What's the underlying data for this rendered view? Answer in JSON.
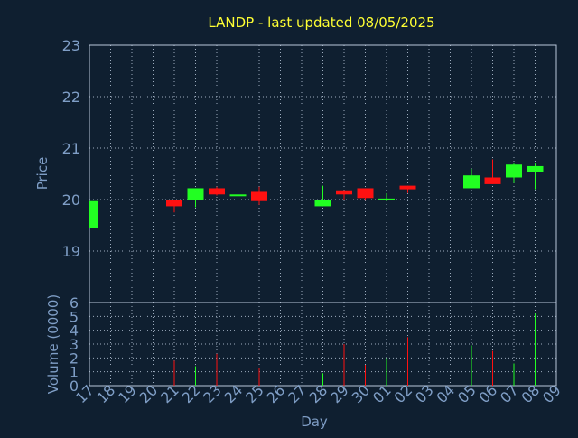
{
  "chart_data": {
    "type": "candlestick",
    "title": "LANDP - last updated 08/05/2025",
    "xlabel": "Day",
    "x_ticks": [
      "17",
      "18",
      "19",
      "20",
      "21",
      "22",
      "23",
      "24",
      "25",
      "26",
      "27",
      "28",
      "29",
      "30",
      "01",
      "02",
      "03",
      "04",
      "05",
      "06",
      "07",
      "08",
      "09"
    ],
    "grid": true,
    "colors": {
      "background": "#0f1f30",
      "up": "#22ff22",
      "down": "#ff1111",
      "title": "#ffff33",
      "axis_text": "#7f9ec6",
      "grid": "#b9c7da"
    },
    "price_panel": {
      "ylabel": "Price",
      "ylim": [
        18.0,
        23.0
      ],
      "y_ticks": [
        "23",
        "22",
        "21",
        "20",
        "19"
      ],
      "candles": [
        {
          "x": 17,
          "open": 19.45,
          "high": 19.97,
          "low": 19.45,
          "close": 19.97
        },
        {
          "x": 21,
          "open": 20.0,
          "high": 20.0,
          "low": 19.75,
          "close": 19.87
        },
        {
          "x": 22,
          "open": 20.0,
          "high": 20.22,
          "low": 19.85,
          "close": 20.22
        },
        {
          "x": 23,
          "open": 20.22,
          "high": 20.25,
          "low": 20.08,
          "close": 20.1
        },
        {
          "x": 24,
          "open": 20.08,
          "high": 20.23,
          "low": 20.05,
          "close": 20.1
        },
        {
          "x": 25,
          "open": 20.15,
          "high": 20.25,
          "low": 19.9,
          "close": 19.97
        },
        {
          "x": 28,
          "open": 19.87,
          "high": 20.27,
          "low": 19.87,
          "close": 20.0
        },
        {
          "x": 29,
          "open": 20.18,
          "high": 20.18,
          "low": 20.0,
          "close": 20.1
        },
        {
          "x": 30,
          "open": 20.22,
          "high": 20.22,
          "low": 19.98,
          "close": 20.03
        },
        {
          "x": 31,
          "open": 20.0,
          "high": 20.12,
          "low": 19.97,
          "close": 20.02
        },
        {
          "x": 32,
          "open": 20.27,
          "high": 20.27,
          "low": 20.13,
          "close": 20.2
        },
        {
          "x": 35,
          "open": 20.22,
          "high": 20.6,
          "low": 20.22,
          "close": 20.47
        },
        {
          "x": 36,
          "open": 20.43,
          "high": 20.78,
          "low": 20.3,
          "close": 20.3
        },
        {
          "x": 37,
          "open": 20.43,
          "high": 20.7,
          "low": 20.32,
          "close": 20.68
        },
        {
          "x": 38,
          "open": 20.53,
          "high": 20.7,
          "low": 20.2,
          "close": 20.65
        }
      ]
    },
    "volume_panel": {
      "ylabel": "Volume (0000)",
      "ylim": [
        0,
        6
      ],
      "y_ticks": [
        "6",
        "5",
        "4",
        "3",
        "2",
        "1",
        "0"
      ],
      "bars": [
        {
          "x": 21,
          "value": 1.8,
          "direction": "down"
        },
        {
          "x": 22,
          "value": 1.4,
          "direction": "up"
        },
        {
          "x": 23,
          "value": 2.3,
          "direction": "down"
        },
        {
          "x": 24,
          "value": 1.6,
          "direction": "up"
        },
        {
          "x": 25,
          "value": 1.3,
          "direction": "down"
        },
        {
          "x": 28,
          "value": 0.9,
          "direction": "up"
        },
        {
          "x": 29,
          "value": 3.0,
          "direction": "down"
        },
        {
          "x": 30,
          "value": 1.5,
          "direction": "down"
        },
        {
          "x": 31,
          "value": 2.0,
          "direction": "up"
        },
        {
          "x": 32,
          "value": 3.5,
          "direction": "down"
        },
        {
          "x": 35,
          "value": 2.9,
          "direction": "up"
        },
        {
          "x": 36,
          "value": 2.5,
          "direction": "down"
        },
        {
          "x": 37,
          "value": 1.6,
          "direction": "up"
        },
        {
          "x": 38,
          "value": 5.2,
          "direction": "up"
        }
      ]
    }
  }
}
